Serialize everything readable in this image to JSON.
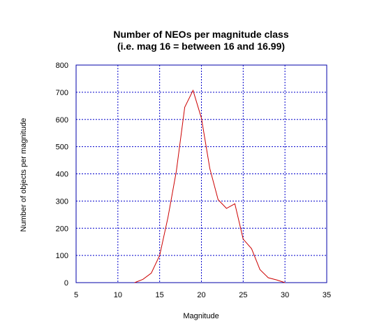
{
  "chart_data": {
    "type": "line",
    "title": "Number of NEOs per magnitude class",
    "subtitle": "(i.e. mag 16 = between 16 and 16.99)",
    "xlabel": "Magnitude",
    "ylabel": "Number of objects per magnitude",
    "xlim": [
      5,
      35
    ],
    "ylim": [
      0,
      800
    ],
    "xticks": [
      "5",
      "10",
      "15",
      "20",
      "25",
      "30",
      "35"
    ],
    "yticks": [
      "0",
      "100",
      "200",
      "300",
      "400",
      "500",
      "600",
      "700",
      "800"
    ],
    "grid": true,
    "colors": {
      "series": "#cc0000",
      "grid": "#0000cc",
      "frame": "#0000aa"
    },
    "series": [
      {
        "x": [
          12,
          13,
          14,
          15,
          16,
          17,
          18,
          19,
          20,
          21,
          22,
          23,
          24,
          25,
          26,
          27,
          28,
          29,
          30
        ],
        "values": [
          0,
          12,
          35,
          100,
          240,
          410,
          645,
          707,
          605,
          420,
          305,
          273,
          290,
          160,
          125,
          48,
          18,
          10,
          0
        ]
      }
    ]
  }
}
